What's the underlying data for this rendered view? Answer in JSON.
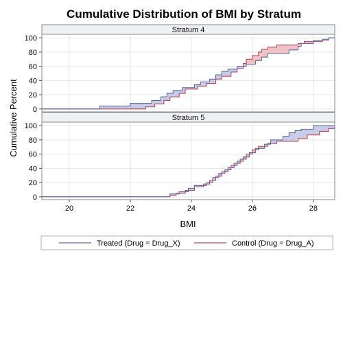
{
  "chart_data": {
    "type": "step-area",
    "title": "Cumulative Distribution of BMI by Stratum",
    "xlabel": "BMI",
    "ylabel": "Cumulative Percent",
    "xlim": [
      19.1,
      28.7
    ],
    "ylim": [
      -4,
      105
    ],
    "xticks": [
      20,
      22,
      24,
      26,
      28
    ],
    "yticks": [
      0,
      20,
      40,
      60,
      80,
      100
    ],
    "grid": true,
    "legend_position": "bottom",
    "colors": {
      "treated_line": "#5b6aa6",
      "control_line": "#b5475a",
      "treated_fill": "#c9cce6",
      "control_fill": "#f1c2c4",
      "panel_header": "#eef2f6"
    },
    "series": [
      {
        "key": "treated",
        "name": "Treated (Drug = Drug_X)"
      },
      {
        "key": "control",
        "name": "Control (Drug = Drug_A)"
      }
    ],
    "panels": [
      {
        "label": "Stratum 4",
        "treated": [
          [
            19.1,
            0
          ],
          [
            21.0,
            4
          ],
          [
            22.0,
            8
          ],
          [
            22.7,
            12
          ],
          [
            23.0,
            17
          ],
          [
            23.2,
            22
          ],
          [
            23.4,
            26
          ],
          [
            23.7,
            30
          ],
          [
            24.1,
            34
          ],
          [
            24.3,
            38
          ],
          [
            24.6,
            42
          ],
          [
            24.8,
            48
          ],
          [
            25.0,
            53
          ],
          [
            25.2,
            56
          ],
          [
            25.5,
            60
          ],
          [
            25.8,
            63
          ],
          [
            26.1,
            68
          ],
          [
            26.3,
            73
          ],
          [
            26.5,
            78
          ],
          [
            27.2,
            83
          ],
          [
            27.5,
            88
          ],
          [
            27.6,
            92
          ],
          [
            28.0,
            96
          ],
          [
            28.3,
            98
          ],
          [
            28.5,
            100
          ],
          [
            28.7,
            100
          ]
        ],
        "control": [
          [
            19.1,
            0
          ],
          [
            22.5,
            3
          ],
          [
            22.8,
            7
          ],
          [
            23.1,
            12
          ],
          [
            23.3,
            17
          ],
          [
            23.6,
            22
          ],
          [
            23.8,
            28
          ],
          [
            24.2,
            32
          ],
          [
            24.5,
            36
          ],
          [
            24.8,
            42
          ],
          [
            25.0,
            46
          ],
          [
            25.3,
            52
          ],
          [
            25.5,
            57
          ],
          [
            25.7,
            64
          ],
          [
            25.8,
            70
          ],
          [
            26.0,
            75
          ],
          [
            26.2,
            80
          ],
          [
            26.3,
            84
          ],
          [
            26.5,
            87
          ],
          [
            26.8,
            90
          ],
          [
            27.5,
            92
          ],
          [
            27.7,
            95
          ],
          [
            28.3,
            97
          ],
          [
            28.5,
            100
          ],
          [
            28.7,
            100
          ]
        ]
      },
      {
        "label": "Stratum 5",
        "treated": [
          [
            19.1,
            0
          ],
          [
            23.3,
            4
          ],
          [
            23.6,
            7
          ],
          [
            23.9,
            12
          ],
          [
            24.1,
            16
          ],
          [
            24.5,
            20
          ],
          [
            24.7,
            27
          ],
          [
            24.9,
            33
          ],
          [
            25.1,
            38
          ],
          [
            25.3,
            44
          ],
          [
            25.5,
            50
          ],
          [
            25.7,
            56
          ],
          [
            25.9,
            62
          ],
          [
            26.1,
            68
          ],
          [
            26.4,
            74
          ],
          [
            26.6,
            80
          ],
          [
            27.0,
            85
          ],
          [
            27.2,
            90
          ],
          [
            27.4,
            93
          ],
          [
            27.6,
            95
          ],
          [
            28.0,
            100
          ],
          [
            28.7,
            100
          ]
        ],
        "control": [
          [
            19.1,
            0
          ],
          [
            23.3,
            2
          ],
          [
            23.5,
            5
          ],
          [
            23.8,
            9
          ],
          [
            24.1,
            14
          ],
          [
            24.4,
            18
          ],
          [
            24.6,
            23
          ],
          [
            24.8,
            29
          ],
          [
            25.0,
            35
          ],
          [
            25.2,
            41
          ],
          [
            25.4,
            47
          ],
          [
            25.6,
            53
          ],
          [
            25.8,
            60
          ],
          [
            26.0,
            66
          ],
          [
            26.2,
            71
          ],
          [
            26.5,
            75
          ],
          [
            26.8,
            78
          ],
          [
            27.5,
            82
          ],
          [
            27.8,
            87
          ],
          [
            28.2,
            92
          ],
          [
            28.5,
            96
          ],
          [
            28.7,
            100
          ]
        ]
      }
    ]
  }
}
